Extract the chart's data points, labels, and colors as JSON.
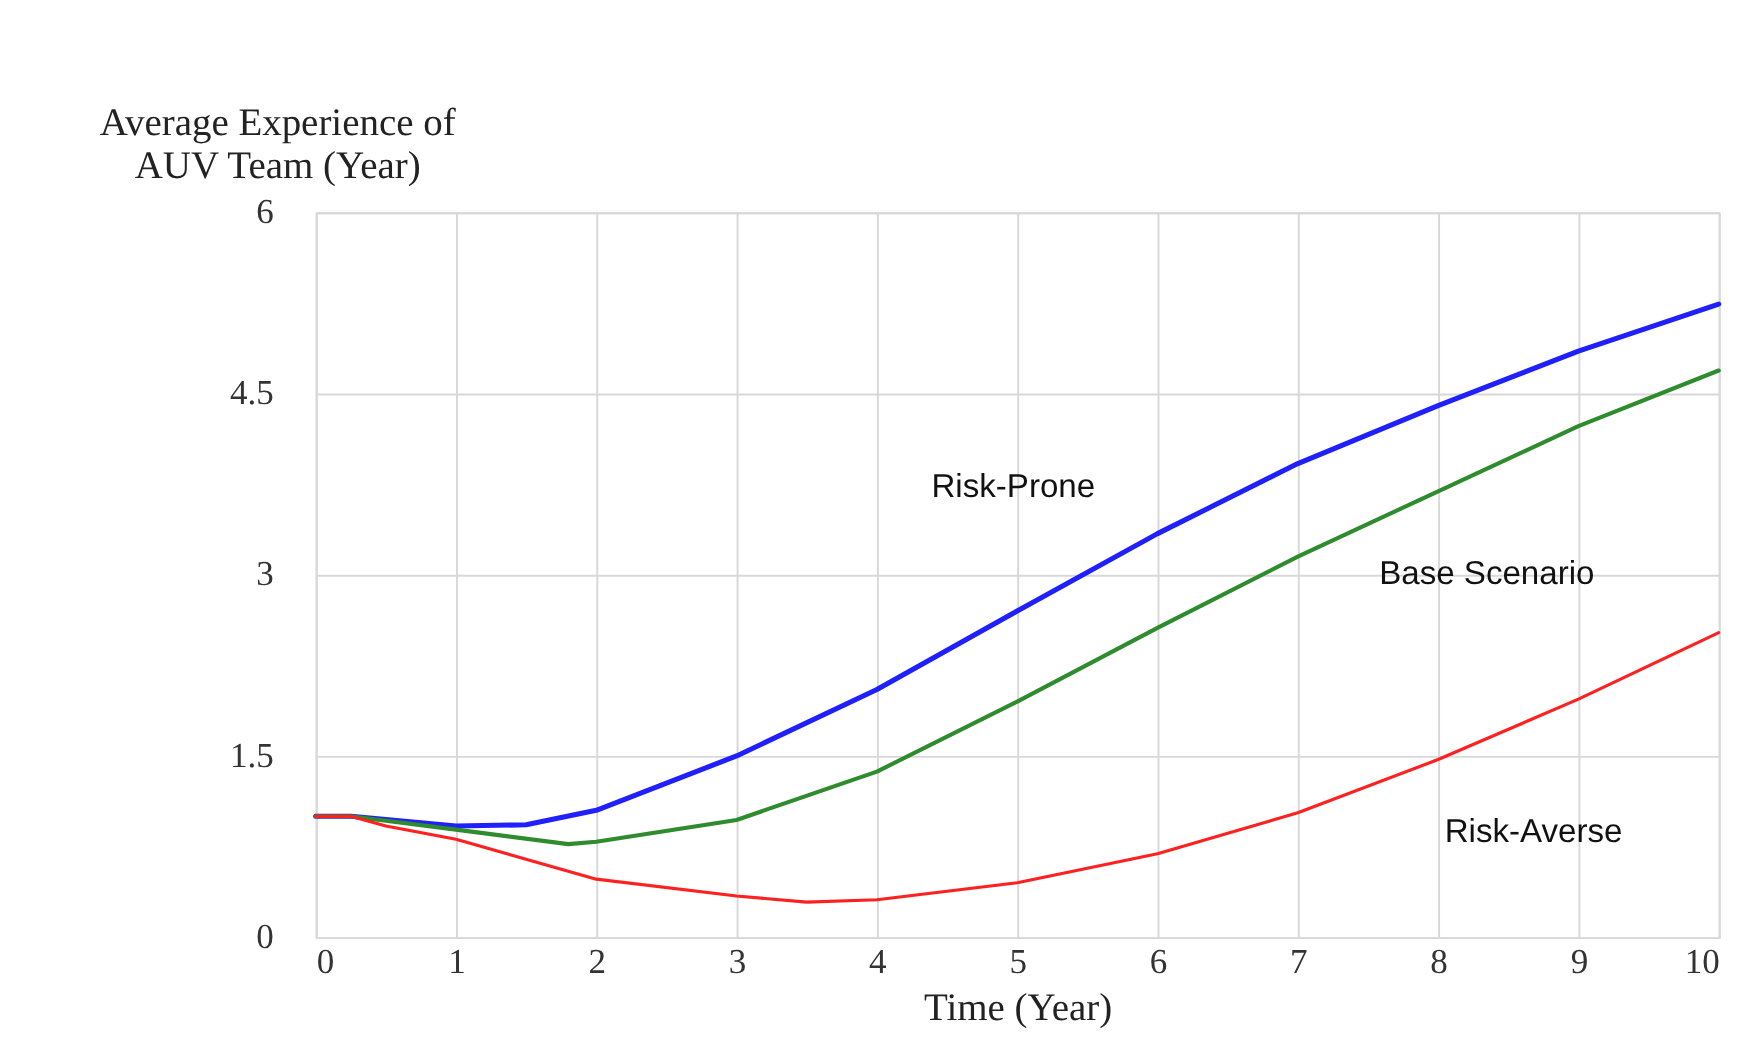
{
  "chart_data": {
    "type": "line",
    "xlabel": "Time (Year)",
    "ylabel": "Average Experience of AUV Team (Year)",
    "xlim": [
      0,
      10
    ],
    "xticks": [
      0,
      1,
      2,
      3,
      4,
      5,
      6,
      7,
      8,
      9,
      10
    ],
    "ylim": [
      0,
      6
    ],
    "yticks": [
      0,
      1.5,
      3,
      4.5,
      6
    ],
    "grid": true,
    "marker": "none",
    "line_style": "solid",
    "series": [
      {
        "color": "#2020ff",
        "x": [
          0,
          0.25,
          1,
          1.5,
          2,
          3,
          4,
          5,
          6,
          7,
          8,
          9,
          10
        ],
        "values": [
          1.0,
          1.0,
          0.92,
          0.93,
          1.05,
          1.5,
          2.05,
          2.7,
          3.34,
          3.92,
          4.4,
          4.85,
          5.24
        ]
      },
      {
        "color": "#2e8b2e",
        "x": [
          0,
          0.25,
          1,
          1.8,
          2,
          3,
          4,
          5,
          6,
          7,
          8,
          9,
          10
        ],
        "values": [
          1.0,
          1.0,
          0.89,
          0.77,
          0.79,
          0.97,
          1.37,
          1.95,
          2.56,
          3.15,
          3.69,
          4.23,
          4.69
        ]
      },
      {
        "color": "#ff2020",
        "x": [
          0,
          0.25,
          0.5,
          1,
          2,
          3,
          3.5,
          4,
          5,
          6,
          7,
          8,
          9,
          10
        ],
        "values": [
          1.0,
          1.0,
          0.92,
          0.81,
          0.48,
          0.34,
          0.29,
          0.31,
          0.45,
          0.69,
          1.03,
          1.47,
          1.97,
          2.52
        ]
      }
    ],
    "annotations": [
      "Risk-Prone",
      "Base Scenario",
      "Risk-Averse"
    ]
  }
}
